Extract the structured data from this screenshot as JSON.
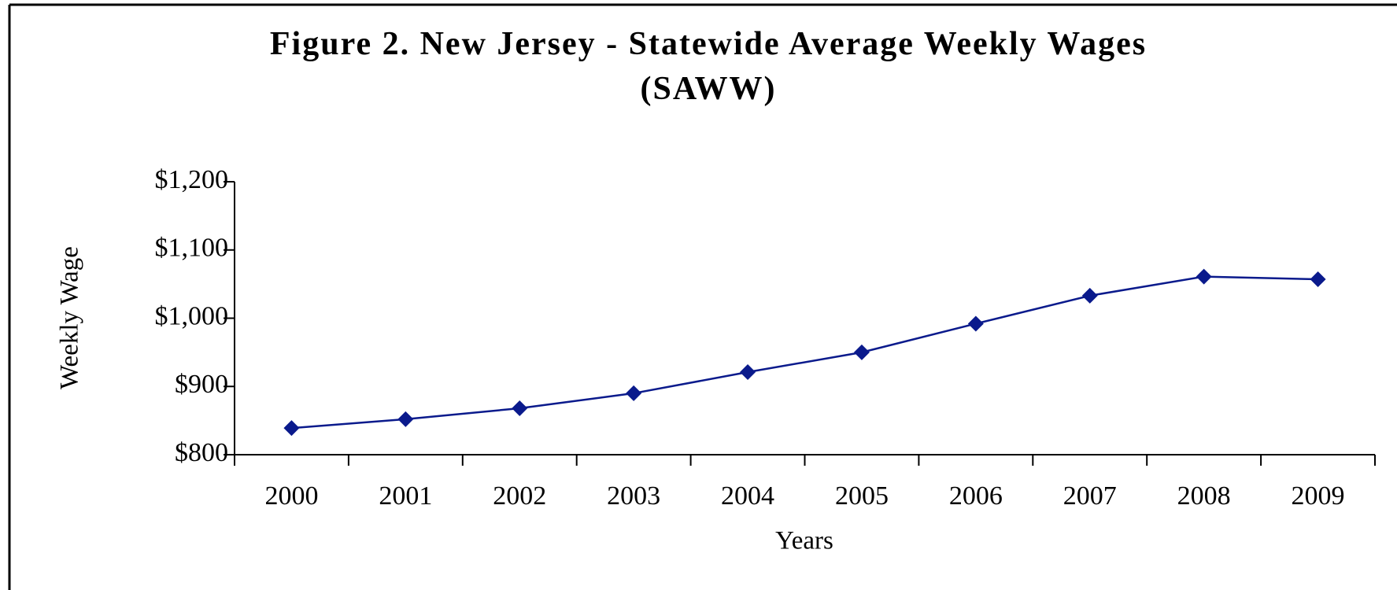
{
  "chart_data": {
    "type": "line",
    "title": "Figure 2.  New Jersey - Statewide Average Weekly Wages (SAWW)",
    "x_label": "Years",
    "y_label": "Weekly Wage",
    "categories": [
      "2000",
      "2001",
      "2002",
      "2003",
      "2004",
      "2005",
      "2006",
      "2007",
      "2008",
      "2009"
    ],
    "series": [
      {
        "name": "SAWW",
        "color": "#0a1a8c",
        "values": [
          839,
          852,
          868,
          890,
          921,
          950,
          992,
          1033,
          1061,
          1057
        ]
      }
    ],
    "ylim": [
      800,
      1200
    ],
    "yticks": [
      {
        "value": 800,
        "label": "$800"
      },
      {
        "value": 900,
        "label": "$900"
      },
      {
        "value": 1000,
        "label": "$1,000"
      },
      {
        "value": 1100,
        "label": "$1,100"
      },
      {
        "value": 1200,
        "label": "$1,200"
      }
    ],
    "legend": false
  }
}
